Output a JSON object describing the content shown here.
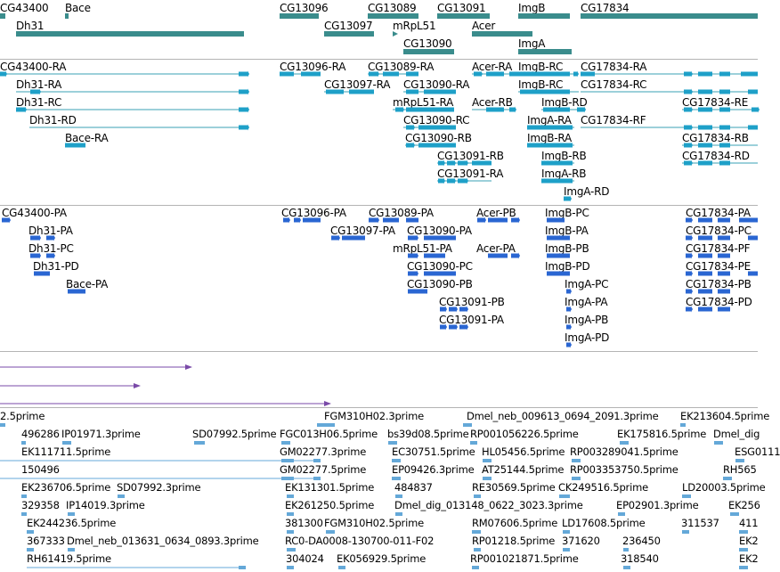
{
  "colors": {
    "gene": "#3a8c8c",
    "mrna_line": "#3aa0b4",
    "mrna_box": "#1ea0c8",
    "cds": "#2a66d2",
    "misc": "#7a4aa8",
    "est": "#64a8d8"
  },
  "tracks": {
    "genes": {
      "features": [
        {
          "label": "CG43400"
        },
        {
          "label": "Bace"
        },
        {
          "label": "Dh31"
        },
        {
          "label": "CG13096"
        },
        {
          "label": "CG13097"
        },
        {
          "label": "CG13089"
        },
        {
          "label": "mRpL51"
        },
        {
          "label": "CG13090"
        },
        {
          "label": "CG13091"
        },
        {
          "label": "Acer"
        },
        {
          "label": "ImgB"
        },
        {
          "label": "ImgA"
        },
        {
          "label": "CG17834"
        }
      ]
    },
    "transcripts": {
      "features": [
        {
          "label": "CG43400-RA"
        },
        {
          "label": "Dh31-RA"
        },
        {
          "label": "Dh31-RC"
        },
        {
          "label": "Dh31-RD"
        },
        {
          "label": "Bace-RA"
        },
        {
          "label": "CG13096-RA"
        },
        {
          "label": "CG13097-RA"
        },
        {
          "label": "CG13089-RA"
        },
        {
          "label": "CG13090-RA"
        },
        {
          "label": "mRpL51-RA"
        },
        {
          "label": "CG13090-RC"
        },
        {
          "label": "CG13090-RB"
        },
        {
          "label": "CG13091-RB"
        },
        {
          "label": "CG13091-RA"
        },
        {
          "label": "Acer-RA"
        },
        {
          "label": "Acer-RB"
        },
        {
          "label": "ImgB-RC"
        },
        {
          "label": "ImgB-RC"
        },
        {
          "label": "ImgB-RD"
        },
        {
          "label": "ImgA-RA"
        },
        {
          "label": "ImgB-RA"
        },
        {
          "label": "ImgB-RB"
        },
        {
          "label": "ImgA-RB"
        },
        {
          "label": "ImgA-RD"
        },
        {
          "label": "CG17834-RA"
        },
        {
          "label": "CG17834-RC"
        },
        {
          "label": "CG17834-RF"
        },
        {
          "label": "CG17834-RE"
        },
        {
          "label": "CG17834-RB"
        },
        {
          "label": "CG17834-RD"
        }
      ]
    },
    "proteins": {
      "features": [
        {
          "label": "CG43400-PA"
        },
        {
          "label": "Dh31-PA"
        },
        {
          "label": "Dh31-PC"
        },
        {
          "label": "Dh31-PD"
        },
        {
          "label": "Bace-PA"
        },
        {
          "label": "CG13096-PA"
        },
        {
          "label": "CG13097-PA"
        },
        {
          "label": "CG13089-PA"
        },
        {
          "label": "CG13090-PA"
        },
        {
          "label": "mRpL51-PA"
        },
        {
          "label": "CG13090-PC"
        },
        {
          "label": "CG13090-PB"
        },
        {
          "label": "CG13091-PB"
        },
        {
          "label": "CG13091-PA"
        },
        {
          "label": "Acer-PB"
        },
        {
          "label": "Acer-PA"
        },
        {
          "label": "ImgB-PC"
        },
        {
          "label": "ImgB-PA"
        },
        {
          "label": "ImgB-PB"
        },
        {
          "label": "ImgB-PD"
        },
        {
          "label": "ImgA-PC"
        },
        {
          "label": "ImgA-PA"
        },
        {
          "label": "ImgA-PB"
        },
        {
          "label": "ImgA-PD"
        },
        {
          "label": "CG17834-PA"
        },
        {
          "label": "CG17834-PC"
        },
        {
          "label": "CG17834-PF"
        },
        {
          "label": "CG17834-PE"
        },
        {
          "label": "CG17834-PB"
        },
        {
          "label": "CG17834-PD"
        }
      ]
    },
    "ests": {
      "features": [
        {
          "label": "2.5prime"
        },
        {
          "label": "FGM310H02.3prime"
        },
        {
          "label": "Dmel_neb_009613_0694_2091.3prime"
        },
        {
          "label": "EK213604.5prime"
        },
        {
          "label": "496286"
        },
        {
          "label": "IP01971.3prime"
        },
        {
          "label": "SD07992.5prime"
        },
        {
          "label": "FGC013H06.5prime"
        },
        {
          "label": "bs39d08.5prime"
        },
        {
          "label": "RP001056226.5prime"
        },
        {
          "label": "EK175816.5prime"
        },
        {
          "label": "Dmel_dig"
        },
        {
          "label": "EK111711.5prime"
        },
        {
          "label": "GM02277.3prime"
        },
        {
          "label": "EC30751.5prime"
        },
        {
          "label": "HL05456.5prime"
        },
        {
          "label": "RP003289041.5prime"
        },
        {
          "label": "ESG0111"
        },
        {
          "label": "150496"
        },
        {
          "label": "GM02277.5prime"
        },
        {
          "label": "EP09426.3prime"
        },
        {
          "label": "AT25144.5prime"
        },
        {
          "label": "RP003353750.5prime"
        },
        {
          "label": "RH565"
        },
        {
          "label": "EK236706.5prime"
        },
        {
          "label": "SD07992.3prime"
        },
        {
          "label": "EK131301.5prime"
        },
        {
          "label": "484837"
        },
        {
          "label": "RE30569.5prime"
        },
        {
          "label": "CK249516.5prime"
        },
        {
          "label": "LD20003.5prime"
        },
        {
          "label": "329358"
        },
        {
          "label": "IP14019.3prime"
        },
        {
          "label": "EK261250.5prime"
        },
        {
          "label": "Dmel_dig_013148_0622_3023.3prime"
        },
        {
          "label": "EP02901.3prime"
        },
        {
          "label": "EK256"
        },
        {
          "label": "EK244236.5prime"
        },
        {
          "label": "381300"
        },
        {
          "label": "FGM310H02.5prime"
        },
        {
          "label": "RM07606.5prime"
        },
        {
          "label": "LD17608.5prime"
        },
        {
          "label": "311537"
        },
        {
          "label": "411"
        },
        {
          "label": "367333"
        },
        {
          "label": "Dmel_neb_013631_0634_0893.3prime"
        },
        {
          "label": "RC0-DA0008-130700-011-F02"
        },
        {
          "label": "RP01218.5prime"
        },
        {
          "label": "371620"
        },
        {
          "label": "236450"
        },
        {
          "label": "EK2"
        },
        {
          "label": "RH61419.5prime"
        },
        {
          "label": "304024"
        },
        {
          "label": "EK056929.5prime"
        },
        {
          "label": "RP001021871.5prime"
        },
        {
          "label": "318540"
        },
        {
          "label": "EK2"
        }
      ]
    }
  }
}
